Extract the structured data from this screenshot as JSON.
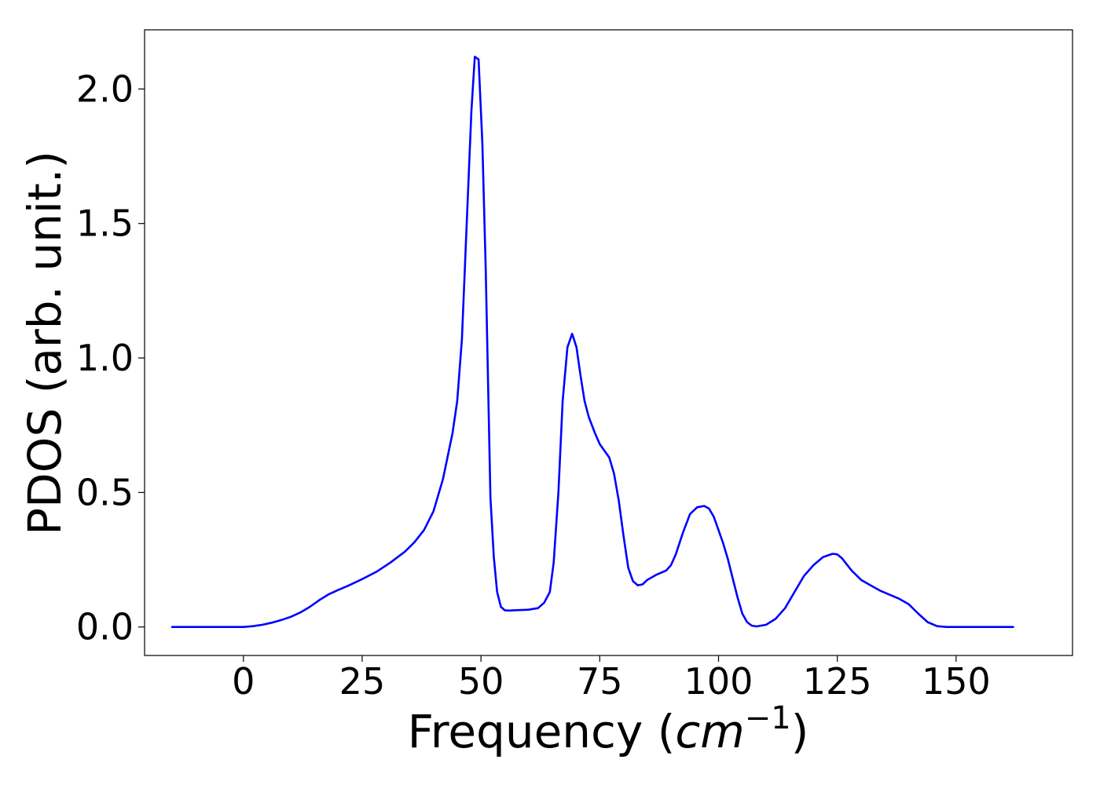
{
  "chart_data": {
    "type": "line",
    "title": "",
    "xlabel": "Frequency (",
    "xlabel_math": "cm",
    "xlabel_sup": "−1",
    "xlabel_close": ")",
    "ylabel": "PDOS (arb. unit.)",
    "xlim": [
      -20.8,
      174.5
    ],
    "ylim": [
      -0.106,
      2.22
    ],
    "x_ticks": [
      0,
      25,
      50,
      75,
      100,
      125,
      150
    ],
    "x_tick_labels": [
      "0",
      "25",
      "50",
      "75",
      "100",
      "125",
      "150"
    ],
    "y_ticks": [
      0.0,
      0.5,
      1.0,
      1.5,
      2.0
    ],
    "y_tick_labels": [
      "0.0",
      "0.5",
      "1.0",
      "1.5",
      "2.0"
    ],
    "grid": false,
    "legend": "none",
    "series": [
      {
        "color": "#0000ff",
        "x": [
          -15,
          -10,
          -5,
          0,
          2,
          4,
          6,
          8,
          10,
          12,
          14,
          16,
          18,
          20,
          22,
          25,
          28,
          31,
          34,
          36,
          38,
          40,
          42,
          44,
          45,
          46,
          47,
          48,
          48.7,
          49.5,
          50.3,
          51,
          52,
          52.7,
          53.4,
          54.2,
          55,
          56,
          57,
          60,
          62,
          63.3,
          64.5,
          65.3,
          66.3,
          67.2,
          68.2,
          69.2,
          70.1,
          71,
          71.8,
          72.7,
          74,
          75,
          77,
          78,
          79,
          80,
          81,
          82,
          83,
          84,
          85,
          87,
          89,
          90,
          91,
          92.5,
          94,
          95.5,
          97,
          98,
          99,
          100,
          101,
          102,
          103,
          104,
          105,
          106,
          107,
          108,
          110,
          112,
          114,
          116,
          118,
          120,
          122,
          124,
          125,
          126,
          128,
          130,
          132,
          134,
          136,
          138,
          140,
          142,
          144,
          146,
          148,
          150,
          155,
          162
        ],
        "y": [
          0.0,
          0.0,
          0.0,
          0.0,
          0.003,
          0.008,
          0.016,
          0.026,
          0.038,
          0.054,
          0.075,
          0.1,
          0.122,
          0.138,
          0.153,
          0.178,
          0.205,
          0.24,
          0.28,
          0.315,
          0.36,
          0.43,
          0.55,
          0.72,
          0.84,
          1.07,
          1.5,
          1.92,
          2.12,
          2.11,
          1.8,
          1.33,
          0.48,
          0.26,
          0.13,
          0.075,
          0.062,
          0.061,
          0.062,
          0.064,
          0.07,
          0.09,
          0.13,
          0.24,
          0.5,
          0.84,
          1.04,
          1.09,
          1.04,
          0.93,
          0.84,
          0.78,
          0.72,
          0.68,
          0.63,
          0.57,
          0.47,
          0.34,
          0.22,
          0.17,
          0.155,
          0.158,
          0.175,
          0.195,
          0.21,
          0.23,
          0.27,
          0.35,
          0.42,
          0.445,
          0.45,
          0.44,
          0.41,
          0.36,
          0.31,
          0.25,
          0.18,
          0.11,
          0.05,
          0.018,
          0.005,
          0.002,
          0.008,
          0.03,
          0.07,
          0.13,
          0.19,
          0.23,
          0.26,
          0.272,
          0.27,
          0.255,
          0.21,
          0.175,
          0.155,
          0.135,
          0.12,
          0.105,
          0.085,
          0.05,
          0.018,
          0.003,
          0.0,
          0.0,
          0.0,
          0.0
        ]
      }
    ]
  }
}
